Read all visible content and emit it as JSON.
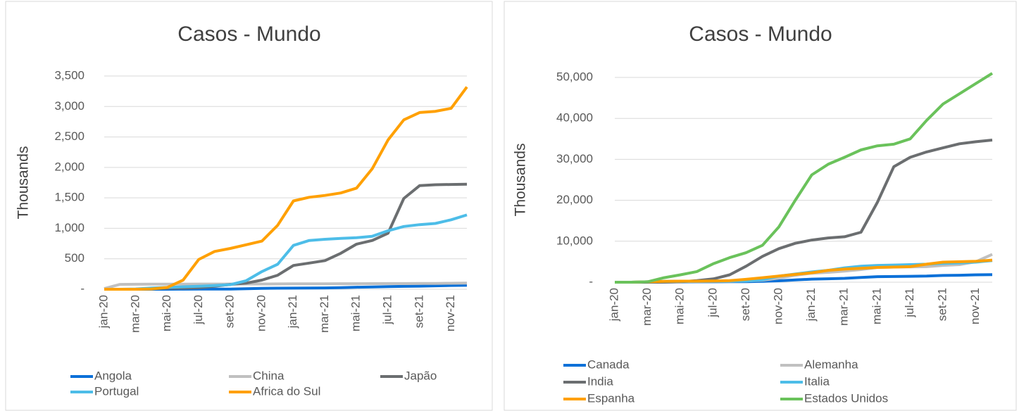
{
  "chart_data": [
    {
      "type": "line",
      "title": "Casos - Mundo",
      "y_label": "Thousands",
      "categories": [
        "jan-20",
        null,
        "mar-20",
        null,
        "mai-20",
        null,
        "jul-20",
        null,
        "set-20",
        null,
        "nov-20",
        null,
        "jan-21",
        null,
        "mar-21",
        null,
        "mai-21",
        null,
        "jul-21",
        null,
        "set-21",
        null,
        "nov-21",
        null
      ],
      "ylim": [
        0,
        3500
      ],
      "yticks": [
        {
          "value": 0,
          "label": "-"
        },
        500,
        {
          "value": 1000,
          "label": "1,000"
        },
        {
          "value": 1500,
          "label": "1,500"
        },
        {
          "value": 2000,
          "label": "2,000"
        },
        {
          "value": 2500,
          "label": "2,500"
        },
        {
          "value": 3000,
          "label": "3,000"
        },
        {
          "value": 3500,
          "label": "3,500"
        }
      ],
      "grid": true,
      "series": [
        {
          "name": "Angola",
          "color": "#0a70d8",
          "values": [
            0,
            0,
            0,
            0,
            0,
            1,
            2,
            3,
            4,
            8,
            14,
            17,
            19,
            20,
            22,
            25,
            33,
            38,
            43,
            47,
            51,
            57,
            62,
            65
          ]
        },
        {
          "name": "China",
          "color": "#c0c0c0",
          "values": [
            10,
            80,
            82,
            83,
            84,
            84,
            85,
            86,
            86,
            87,
            87,
            88,
            89,
            90,
            90,
            91,
            91,
            92,
            93,
            94,
            95,
            96,
            98,
            100
          ]
        },
        {
          "name": "Japão",
          "color": "#6b6e70",
          "values": [
            0,
            0,
            1,
            10,
            17,
            18,
            25,
            50,
            80,
            100,
            150,
            230,
            390,
            430,
            470,
            590,
            740,
            800,
            920,
            1490,
            1700,
            1715,
            1720,
            1725
          ]
        },
        {
          "name": "Portugal",
          "color": "#4dbde8",
          "values": [
            0,
            0,
            5,
            20,
            30,
            40,
            50,
            60,
            75,
            140,
            290,
            410,
            720,
            800,
            820,
            835,
            845,
            870,
            960,
            1030,
            1060,
            1080,
            1140,
            1220
          ]
        },
        {
          "name": "Africa do Sul",
          "color": "#ffa000",
          "values": [
            0,
            0,
            0,
            5,
            30,
            150,
            490,
            620,
            670,
            730,
            790,
            1050,
            1450,
            1510,
            1540,
            1580,
            1660,
            1980,
            2450,
            2780,
            2900,
            2920,
            2970,
            3320
          ]
        }
      ]
    },
    {
      "type": "line",
      "title": "Casos - Mundo",
      "y_label": "Thousands",
      "categories": [
        "jan-20",
        null,
        "mar-20",
        null,
        "mai-20",
        null,
        "jul-20",
        null,
        "set-20",
        null,
        "nov-20",
        null,
        "jan-21",
        null,
        "mar-21",
        null,
        "mai-21",
        null,
        "jul-21",
        null,
        "set-21",
        null,
        "nov-21",
        null
      ],
      "ylim": [
        0,
        52000
      ],
      "yticks": [
        {
          "value": 0,
          "label": "-"
        },
        {
          "value": 10000,
          "label": "10,000"
        },
        {
          "value": 20000,
          "label": "20,000"
        },
        {
          "value": 30000,
          "label": "30,000"
        },
        {
          "value": 40000,
          "label": "40,000"
        },
        {
          "value": 50000,
          "label": "50,000"
        }
      ],
      "grid": true,
      "series": [
        {
          "name": "Canada",
          "color": "#0a70d8",
          "values": [
            0,
            0,
            5,
            50,
            90,
            100,
            110,
            120,
            140,
            200,
            350,
            550,
            750,
            850,
            950,
            1150,
            1350,
            1400,
            1450,
            1500,
            1650,
            1700,
            1800,
            1850
          ]
        },
        {
          "name": "Alemanha",
          "color": "#c0c0c0",
          "values": [
            0,
            0,
            70,
            160,
            180,
            190,
            200,
            230,
            290,
            500,
            1000,
            1700,
            2200,
            2400,
            2700,
            3100,
            3600,
            3700,
            3750,
            3800,
            4100,
            4300,
            5000,
            6800
          ]
        },
        {
          "name": "India",
          "color": "#6b6e70",
          "values": [
            0,
            0,
            0,
            10,
            100,
            400,
            800,
            1800,
            3900,
            6300,
            8200,
            9500,
            10300,
            10800,
            11100,
            12200,
            19500,
            28200,
            30500,
            31800,
            32800,
            33800,
            34300,
            34700
          ]
        },
        {
          "name": "Italia",
          "color": "#4dbde8",
          "values": [
            0,
            0,
            100,
            200,
            230,
            240,
            250,
            270,
            300,
            600,
            1500,
            2000,
            2500,
            2900,
            3500,
            3900,
            4100,
            4200,
            4300,
            4400,
            4600,
            4700,
            4900,
            5300
          ]
        },
        {
          "name": "Espanha",
          "color": "#ffa000",
          "values": [
            0,
            0,
            100,
            200,
            250,
            250,
            300,
            400,
            700,
            1100,
            1500,
            1900,
            2300,
            2900,
            3200,
            3400,
            3600,
            3700,
            3800,
            4400,
            4900,
            5000,
            5100,
            5400
          ]
        },
        {
          "name": "Estados Unidos",
          "color": "#6ac25b",
          "values": [
            0,
            0,
            100,
            1100,
            1800,
            2600,
            4500,
            6000,
            7200,
            9000,
            13500,
            20000,
            26200,
            28800,
            30500,
            32300,
            33300,
            33700,
            35000,
            39500,
            43500,
            46000,
            48500,
            51000
          ]
        }
      ]
    }
  ]
}
